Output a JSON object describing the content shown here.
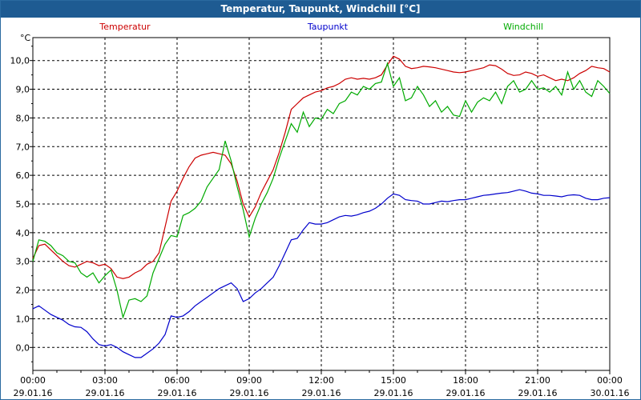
{
  "title": "Temperatur, Taupunkt, Windchill [°C]",
  "chart_data": {
    "type": "line",
    "ylabel": "°C",
    "ylim": [
      -0.8,
      10.8
    ],
    "xlim_hours": [
      0,
      24
    ],
    "grid": true,
    "y_ticks": [
      "0,0",
      "1,0",
      "2,0",
      "3,0",
      "4,0",
      "5,0",
      "6,0",
      "7,0",
      "8,0",
      "9,0",
      "10,0"
    ],
    "x_ticks": [
      {
        "time": "00:00",
        "date": "29.01.16"
      },
      {
        "time": "03:00",
        "date": "29.01.16"
      },
      {
        "time": "06:00",
        "date": "29.01.16"
      },
      {
        "time": "09:00",
        "date": "29.01.16"
      },
      {
        "time": "12:00",
        "date": "29.01.16"
      },
      {
        "time": "15:00",
        "date": "29.01.16"
      },
      {
        "time": "18:00",
        "date": "29.01.16"
      },
      {
        "time": "21:00",
        "date": "29.01.16"
      },
      {
        "time": "00:00",
        "date": "30.01.16"
      }
    ],
    "series": [
      {
        "name": "Temperatur",
        "color": "#cc0000",
        "points": [
          [
            0.0,
            3.1
          ],
          [
            0.25,
            3.55
          ],
          [
            0.5,
            3.6
          ],
          [
            0.75,
            3.4
          ],
          [
            1.0,
            3.2
          ],
          [
            1.25,
            3.0
          ],
          [
            1.5,
            2.85
          ],
          [
            1.75,
            2.8
          ],
          [
            2.0,
            2.9
          ],
          [
            2.25,
            3.0
          ],
          [
            2.5,
            2.95
          ],
          [
            2.75,
            2.85
          ],
          [
            3.0,
            2.9
          ],
          [
            3.25,
            2.75
          ],
          [
            3.5,
            2.45
          ],
          [
            3.75,
            2.4
          ],
          [
            4.0,
            2.45
          ],
          [
            4.25,
            2.6
          ],
          [
            4.5,
            2.7
          ],
          [
            4.75,
            2.9
          ],
          [
            5.0,
            3.0
          ],
          [
            5.25,
            3.3
          ],
          [
            5.5,
            4.2
          ],
          [
            5.75,
            5.1
          ],
          [
            6.0,
            5.45
          ],
          [
            6.25,
            5.9
          ],
          [
            6.5,
            6.3
          ],
          [
            6.75,
            6.6
          ],
          [
            7.0,
            6.7
          ],
          [
            7.25,
            6.75
          ],
          [
            7.5,
            6.8
          ],
          [
            7.75,
            6.75
          ],
          [
            8.0,
            6.7
          ],
          [
            8.25,
            6.4
          ],
          [
            8.5,
            5.8
          ],
          [
            8.75,
            5.0
          ],
          [
            9.0,
            4.55
          ],
          [
            9.25,
            4.9
          ],
          [
            9.5,
            5.4
          ],
          [
            9.75,
            5.8
          ],
          [
            10.0,
            6.2
          ],
          [
            10.25,
            6.8
          ],
          [
            10.5,
            7.5
          ],
          [
            10.75,
            8.3
          ],
          [
            11.0,
            8.5
          ],
          [
            11.25,
            8.7
          ],
          [
            11.5,
            8.8
          ],
          [
            11.75,
            8.9
          ],
          [
            12.0,
            8.95
          ],
          [
            12.25,
            9.05
          ],
          [
            12.5,
            9.1
          ],
          [
            12.75,
            9.2
          ],
          [
            13.0,
            9.35
          ],
          [
            13.25,
            9.4
          ],
          [
            13.5,
            9.35
          ],
          [
            13.75,
            9.38
          ],
          [
            14.0,
            9.35
          ],
          [
            14.25,
            9.4
          ],
          [
            14.5,
            9.5
          ],
          [
            14.75,
            9.85
          ],
          [
            15.0,
            10.15
          ],
          [
            15.25,
            10.05
          ],
          [
            15.5,
            9.8
          ],
          [
            15.75,
            9.72
          ],
          [
            16.0,
            9.75
          ],
          [
            16.25,
            9.8
          ],
          [
            16.5,
            9.78
          ],
          [
            16.75,
            9.75
          ],
          [
            17.0,
            9.7
          ],
          [
            17.25,
            9.65
          ],
          [
            17.5,
            9.6
          ],
          [
            17.75,
            9.58
          ],
          [
            18.0,
            9.6
          ],
          [
            18.25,
            9.65
          ],
          [
            18.5,
            9.7
          ],
          [
            18.75,
            9.75
          ],
          [
            19.0,
            9.85
          ],
          [
            19.25,
            9.82
          ],
          [
            19.5,
            9.7
          ],
          [
            19.75,
            9.55
          ],
          [
            20.0,
            9.48
          ],
          [
            20.25,
            9.5
          ],
          [
            20.5,
            9.6
          ],
          [
            20.75,
            9.55
          ],
          [
            21.0,
            9.45
          ],
          [
            21.25,
            9.5
          ],
          [
            21.5,
            9.4
          ],
          [
            21.75,
            9.3
          ],
          [
            22.0,
            9.35
          ],
          [
            22.25,
            9.3
          ],
          [
            22.5,
            9.4
          ],
          [
            22.75,
            9.55
          ],
          [
            23.0,
            9.65
          ],
          [
            23.25,
            9.8
          ],
          [
            23.5,
            9.75
          ],
          [
            23.75,
            9.72
          ],
          [
            24.0,
            9.6
          ]
        ]
      },
      {
        "name": "Taupunkt",
        "color": "#0000cc",
        "points": [
          [
            0.0,
            1.35
          ],
          [
            0.25,
            1.45
          ],
          [
            0.5,
            1.3
          ],
          [
            0.75,
            1.15
          ],
          [
            1.0,
            1.05
          ],
          [
            1.25,
            0.95
          ],
          [
            1.5,
            0.8
          ],
          [
            1.75,
            0.72
          ],
          [
            2.0,
            0.7
          ],
          [
            2.25,
            0.55
          ],
          [
            2.5,
            0.3
          ],
          [
            2.75,
            0.1
          ],
          [
            3.0,
            0.05
          ],
          [
            3.25,
            0.1
          ],
          [
            3.5,
            0.0
          ],
          [
            3.75,
            -0.15
          ],
          [
            4.0,
            -0.25
          ],
          [
            4.25,
            -0.35
          ],
          [
            4.5,
            -0.35
          ],
          [
            4.75,
            -0.2
          ],
          [
            5.0,
            -0.05
          ],
          [
            5.25,
            0.15
          ],
          [
            5.5,
            0.45
          ],
          [
            5.75,
            1.1
          ],
          [
            6.0,
            1.05
          ],
          [
            6.25,
            1.1
          ],
          [
            6.5,
            1.25
          ],
          [
            6.75,
            1.45
          ],
          [
            7.0,
            1.6
          ],
          [
            7.25,
            1.75
          ],
          [
            7.5,
            1.9
          ],
          [
            7.75,
            2.05
          ],
          [
            8.0,
            2.15
          ],
          [
            8.25,
            2.25
          ],
          [
            8.5,
            2.05
          ],
          [
            8.75,
            1.6
          ],
          [
            9.0,
            1.7
          ],
          [
            9.25,
            1.9
          ],
          [
            9.5,
            2.05
          ],
          [
            9.75,
            2.25
          ],
          [
            10.0,
            2.45
          ],
          [
            10.25,
            2.85
          ],
          [
            10.5,
            3.3
          ],
          [
            10.75,
            3.75
          ],
          [
            11.0,
            3.8
          ],
          [
            11.25,
            4.1
          ],
          [
            11.5,
            4.35
          ],
          [
            11.75,
            4.3
          ],
          [
            12.0,
            4.3
          ],
          [
            12.25,
            4.35
          ],
          [
            12.5,
            4.45
          ],
          [
            12.75,
            4.55
          ],
          [
            13.0,
            4.6
          ],
          [
            13.25,
            4.58
          ],
          [
            13.5,
            4.62
          ],
          [
            13.75,
            4.7
          ],
          [
            14.0,
            4.75
          ],
          [
            14.25,
            4.85
          ],
          [
            14.5,
            5.0
          ],
          [
            14.75,
            5.2
          ],
          [
            15.0,
            5.35
          ],
          [
            15.25,
            5.3
          ],
          [
            15.5,
            5.15
          ],
          [
            15.75,
            5.12
          ],
          [
            16.0,
            5.1
          ],
          [
            16.25,
            5.0
          ],
          [
            16.5,
            5.0
          ],
          [
            16.75,
            5.05
          ],
          [
            17.0,
            5.1
          ],
          [
            17.25,
            5.08
          ],
          [
            17.5,
            5.12
          ],
          [
            17.75,
            5.15
          ],
          [
            18.0,
            5.15
          ],
          [
            18.25,
            5.2
          ],
          [
            18.5,
            5.25
          ],
          [
            18.75,
            5.3
          ],
          [
            19.0,
            5.32
          ],
          [
            19.25,
            5.35
          ],
          [
            19.5,
            5.38
          ],
          [
            19.75,
            5.4
          ],
          [
            20.0,
            5.45
          ],
          [
            20.25,
            5.5
          ],
          [
            20.5,
            5.45
          ],
          [
            20.75,
            5.38
          ],
          [
            21.0,
            5.35
          ],
          [
            21.25,
            5.3
          ],
          [
            21.5,
            5.3
          ],
          [
            21.75,
            5.28
          ],
          [
            22.0,
            5.25
          ],
          [
            22.25,
            5.3
          ],
          [
            22.5,
            5.32
          ],
          [
            22.75,
            5.3
          ],
          [
            23.0,
            5.2
          ],
          [
            23.25,
            5.15
          ],
          [
            23.5,
            5.15
          ],
          [
            23.75,
            5.2
          ],
          [
            24.0,
            5.22
          ]
        ]
      },
      {
        "name": "Windchill",
        "color": "#00aa00",
        "points": [
          [
            0.0,
            3.0
          ],
          [
            0.25,
            3.75
          ],
          [
            0.5,
            3.7
          ],
          [
            0.75,
            3.55
          ],
          [
            1.0,
            3.3
          ],
          [
            1.25,
            3.2
          ],
          [
            1.5,
            3.0
          ],
          [
            1.75,
            2.95
          ],
          [
            2.0,
            2.6
          ],
          [
            2.25,
            2.45
          ],
          [
            2.5,
            2.6
          ],
          [
            2.75,
            2.25
          ],
          [
            3.0,
            2.5
          ],
          [
            3.25,
            2.7
          ],
          [
            3.5,
            2.0
          ],
          [
            3.75,
            1.05
          ],
          [
            4.0,
            1.65
          ],
          [
            4.25,
            1.7
          ],
          [
            4.5,
            1.6
          ],
          [
            4.75,
            1.8
          ],
          [
            5.0,
            2.6
          ],
          [
            5.25,
            3.1
          ],
          [
            5.5,
            3.6
          ],
          [
            5.75,
            3.9
          ],
          [
            6.0,
            3.85
          ],
          [
            6.25,
            4.6
          ],
          [
            6.5,
            4.7
          ],
          [
            6.75,
            4.85
          ],
          [
            7.0,
            5.1
          ],
          [
            7.25,
            5.6
          ],
          [
            7.5,
            5.9
          ],
          [
            7.75,
            6.2
          ],
          [
            8.0,
            7.2
          ],
          [
            8.25,
            6.5
          ],
          [
            8.5,
            5.6
          ],
          [
            8.75,
            4.8
          ],
          [
            9.0,
            3.85
          ],
          [
            9.25,
            4.5
          ],
          [
            9.5,
            5.0
          ],
          [
            9.75,
            5.4
          ],
          [
            10.0,
            5.9
          ],
          [
            10.25,
            6.6
          ],
          [
            10.5,
            7.2
          ],
          [
            10.75,
            7.8
          ],
          [
            11.0,
            7.5
          ],
          [
            11.25,
            8.2
          ],
          [
            11.5,
            7.7
          ],
          [
            11.75,
            8.0
          ],
          [
            12.0,
            7.95
          ],
          [
            12.25,
            8.3
          ],
          [
            12.5,
            8.15
          ],
          [
            12.75,
            8.5
          ],
          [
            13.0,
            8.6
          ],
          [
            13.25,
            8.9
          ],
          [
            13.5,
            8.8
          ],
          [
            13.75,
            9.1
          ],
          [
            14.0,
            9.0
          ],
          [
            14.25,
            9.2
          ],
          [
            14.5,
            9.25
          ],
          [
            14.75,
            9.9
          ],
          [
            15.0,
            9.1
          ],
          [
            15.25,
            9.4
          ],
          [
            15.5,
            8.6
          ],
          [
            15.75,
            8.7
          ],
          [
            16.0,
            9.1
          ],
          [
            16.25,
            8.8
          ],
          [
            16.5,
            8.4
          ],
          [
            16.75,
            8.6
          ],
          [
            17.0,
            8.2
          ],
          [
            17.25,
            8.4
          ],
          [
            17.5,
            8.1
          ],
          [
            17.75,
            8.05
          ],
          [
            18.0,
            8.6
          ],
          [
            18.25,
            8.2
          ],
          [
            18.5,
            8.55
          ],
          [
            18.75,
            8.7
          ],
          [
            19.0,
            8.6
          ],
          [
            19.25,
            8.9
          ],
          [
            19.5,
            8.5
          ],
          [
            19.75,
            9.1
          ],
          [
            20.0,
            9.3
          ],
          [
            20.25,
            8.9
          ],
          [
            20.5,
            9.0
          ],
          [
            20.75,
            9.3
          ],
          [
            21.0,
            9.0
          ],
          [
            21.25,
            9.05
          ],
          [
            21.5,
            8.9
          ],
          [
            21.75,
            9.1
          ],
          [
            22.0,
            8.8
          ],
          [
            22.25,
            9.6
          ],
          [
            22.5,
            9.0
          ],
          [
            22.75,
            9.3
          ],
          [
            23.0,
            8.9
          ],
          [
            23.25,
            8.75
          ],
          [
            23.5,
            9.3
          ],
          [
            23.75,
            9.1
          ],
          [
            24.0,
            8.85
          ]
        ]
      }
    ]
  }
}
